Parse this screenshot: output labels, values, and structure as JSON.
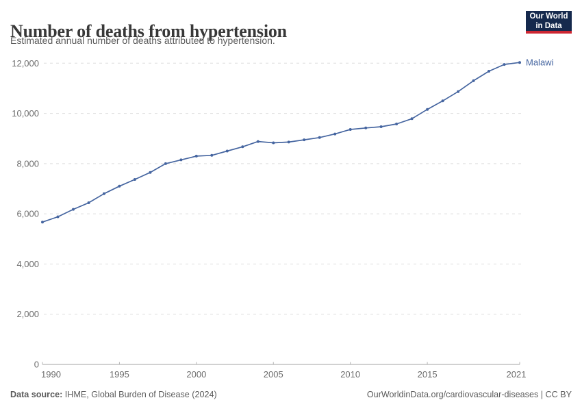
{
  "header": {
    "title": "Number of deaths from hypertension",
    "subtitle": "Estimated annual number of deaths attributed to hypertension.",
    "logo": {
      "line1": "Our World",
      "line2": "in Data"
    }
  },
  "chart_data": {
    "type": "line",
    "title": "Number of deaths from hypertension",
    "entity": "Malawi",
    "x": [
      1990,
      1991,
      1992,
      1993,
      1994,
      1995,
      1996,
      1997,
      1998,
      1999,
      2000,
      2001,
      2002,
      2003,
      2004,
      2005,
      2006,
      2007,
      2008,
      2009,
      2010,
      2011,
      2012,
      2013,
      2014,
      2015,
      2016,
      2017,
      2018,
      2019,
      2020,
      2021
    ],
    "values": [
      5670,
      5880,
      6180,
      6440,
      6800,
      7100,
      7370,
      7650,
      8000,
      8150,
      8300,
      8330,
      8500,
      8670,
      8880,
      8830,
      8860,
      8950,
      9040,
      9180,
      9360,
      9420,
      9470,
      9580,
      9790,
      10160,
      10500,
      10870,
      11300,
      11680,
      11950,
      12030
    ],
    "xlabel": "",
    "ylabel": "",
    "ylim": [
      0,
      12000
    ],
    "yticks": [
      0,
      2000,
      4000,
      6000,
      8000,
      10000,
      12000
    ],
    "ytick_labels": [
      "0",
      "2,000",
      "4,000",
      "6,000",
      "8,000",
      "10,000",
      "12,000"
    ],
    "xticks": [
      1990,
      1995,
      2000,
      2005,
      2010,
      2015,
      2021
    ],
    "xtick_labels": [
      "1990",
      "1995",
      "2000",
      "2005",
      "2010",
      "2015",
      "2021"
    ],
    "grid": "horizontal-dashed",
    "legend_position": "end-of-line-label",
    "line_color": "#4565a0"
  },
  "footer": {
    "source_label": "Data source:",
    "source_text": " IHME, Global Burden of Disease (2024)",
    "credit": "OurWorldinData.org/cardiovascular-diseases | CC BY"
  },
  "colors": {
    "accent_line": "#4565a0",
    "logo_bg": "#15294d",
    "logo_red": "#cd2632",
    "title_text": "#383838",
    "muted_text": "#5b5b5b",
    "axis_text": "#6b6b6b",
    "gridline": "#dedede",
    "axis_line": "#a3a3a3"
  }
}
